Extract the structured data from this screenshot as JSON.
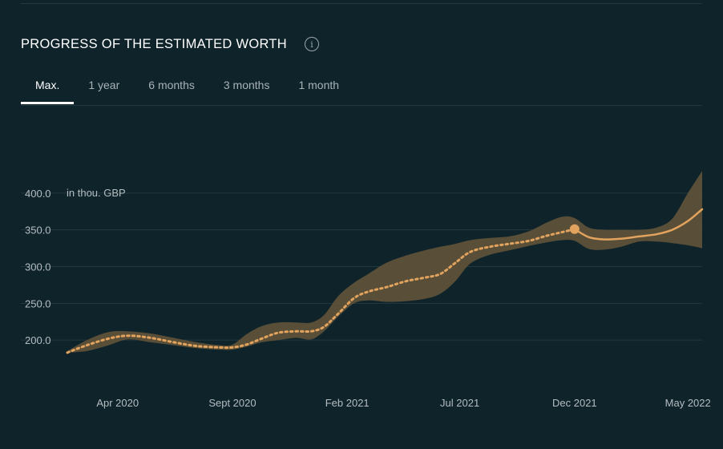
{
  "header": {
    "title": "PROGRESS OF THE ESTIMATED WORTH",
    "info_icon": "info-icon"
  },
  "tabs": [
    {
      "label": "Max.",
      "active": true
    },
    {
      "label": "1 year",
      "active": false
    },
    {
      "label": "6 months",
      "active": false
    },
    {
      "label": "3 months",
      "active": false
    },
    {
      "label": "1 month",
      "active": false
    }
  ],
  "colors": {
    "background": "#0f232b",
    "accent": "#e1a35e",
    "band": "#5e5138",
    "grid": "#24383f",
    "axis_text": "#b4bec1"
  },
  "chart_data": {
    "type": "line",
    "ylabel": "in thou. GBP",
    "ylim": [
      150,
      450
    ],
    "yticks": [
      200.0,
      250.0,
      300.0,
      350.0,
      400.0
    ],
    "ytick_labels": [
      "200.0",
      "250.0",
      "300.0",
      "350.0",
      "400.0"
    ],
    "xlim": [
      "2020-01-25",
      "2022-05-20"
    ],
    "xticks": [
      {
        "date": "2020-04-01",
        "label": "Apr 2020"
      },
      {
        "date": "2020-09-01",
        "label": "Sept 2020"
      },
      {
        "date": "2021-02-01",
        "label": "Feb 2021"
      },
      {
        "date": "2021-07-01",
        "label": "Jul 2021"
      },
      {
        "date": "2021-12-01",
        "label": "Dec 2021"
      },
      {
        "date": "2022-05-01",
        "label": "May 2022"
      }
    ],
    "grid": true,
    "marker": {
      "date": "2021-12-01",
      "value": 351
    },
    "series": [
      {
        "style": "dotted",
        "x": [
          "2020-01-25",
          "2020-02-20",
          "2020-03-20",
          "2020-04-15",
          "2020-05-15",
          "2020-06-15",
          "2020-07-15",
          "2020-08-15",
          "2020-09-01",
          "2020-09-20",
          "2020-10-10",
          "2020-11-01",
          "2020-11-25",
          "2020-12-15",
          "2021-01-01",
          "2021-01-20",
          "2021-02-10",
          "2021-03-01",
          "2021-03-25",
          "2021-04-20",
          "2021-05-15",
          "2021-06-05",
          "2021-06-25",
          "2021-07-15",
          "2021-08-10",
          "2021-09-05",
          "2021-10-01",
          "2021-10-25",
          "2021-11-15",
          "2021-12-01"
        ],
        "values": [
          183,
          193,
          202,
          206,
          203,
          197,
          192,
          190,
          190,
          194,
          202,
          210,
          212,
          212,
          218,
          236,
          257,
          266,
          272,
          280,
          285,
          290,
          305,
          320,
          327,
          331,
          335,
          342,
          347,
          351
        ]
      },
      {
        "style": "solid",
        "x": [
          "2021-12-01",
          "2021-12-20",
          "2022-01-10",
          "2022-02-01",
          "2022-02-25",
          "2022-03-20",
          "2022-04-10",
          "2022-05-01",
          "2022-05-20"
        ],
        "values": [
          351,
          340,
          337,
          338,
          341,
          344,
          350,
          362,
          378
        ]
      }
    ],
    "band": {
      "x": [
        "2020-01-25",
        "2020-02-20",
        "2020-03-20",
        "2020-04-15",
        "2020-05-15",
        "2020-06-15",
        "2020-07-15",
        "2020-08-15",
        "2020-09-01",
        "2020-09-20",
        "2020-10-10",
        "2020-11-01",
        "2020-11-25",
        "2020-12-15",
        "2021-01-01",
        "2021-01-20",
        "2021-02-10",
        "2021-03-01",
        "2021-03-25",
        "2021-04-20",
        "2021-05-15",
        "2021-06-05",
        "2021-06-25",
        "2021-07-15",
        "2021-08-10",
        "2021-09-05",
        "2021-10-01",
        "2021-10-25",
        "2021-11-15",
        "2021-12-01",
        "2021-12-20",
        "2022-01-10",
        "2022-02-01",
        "2022-02-25",
        "2022-03-20",
        "2022-04-10",
        "2022-05-01",
        "2022-05-20"
      ],
      "upper": [
        185,
        200,
        211,
        212,
        209,
        203,
        197,
        193,
        194,
        208,
        219,
        224,
        224,
        224,
        234,
        260,
        278,
        290,
        305,
        315,
        322,
        327,
        331,
        336,
        339,
        341,
        348,
        360,
        368,
        366,
        353,
        350,
        350,
        350,
        353,
        365,
        400,
        430
      ],
      "lower": [
        183,
        185,
        193,
        201,
        197,
        193,
        189,
        187,
        187,
        191,
        197,
        200,
        203,
        201,
        212,
        232,
        250,
        254,
        252,
        253,
        256,
        263,
        280,
        304,
        316,
        322,
        328,
        333,
        336,
        335,
        324,
        323,
        327,
        334,
        334,
        332,
        329,
        325
      ]
    }
  }
}
